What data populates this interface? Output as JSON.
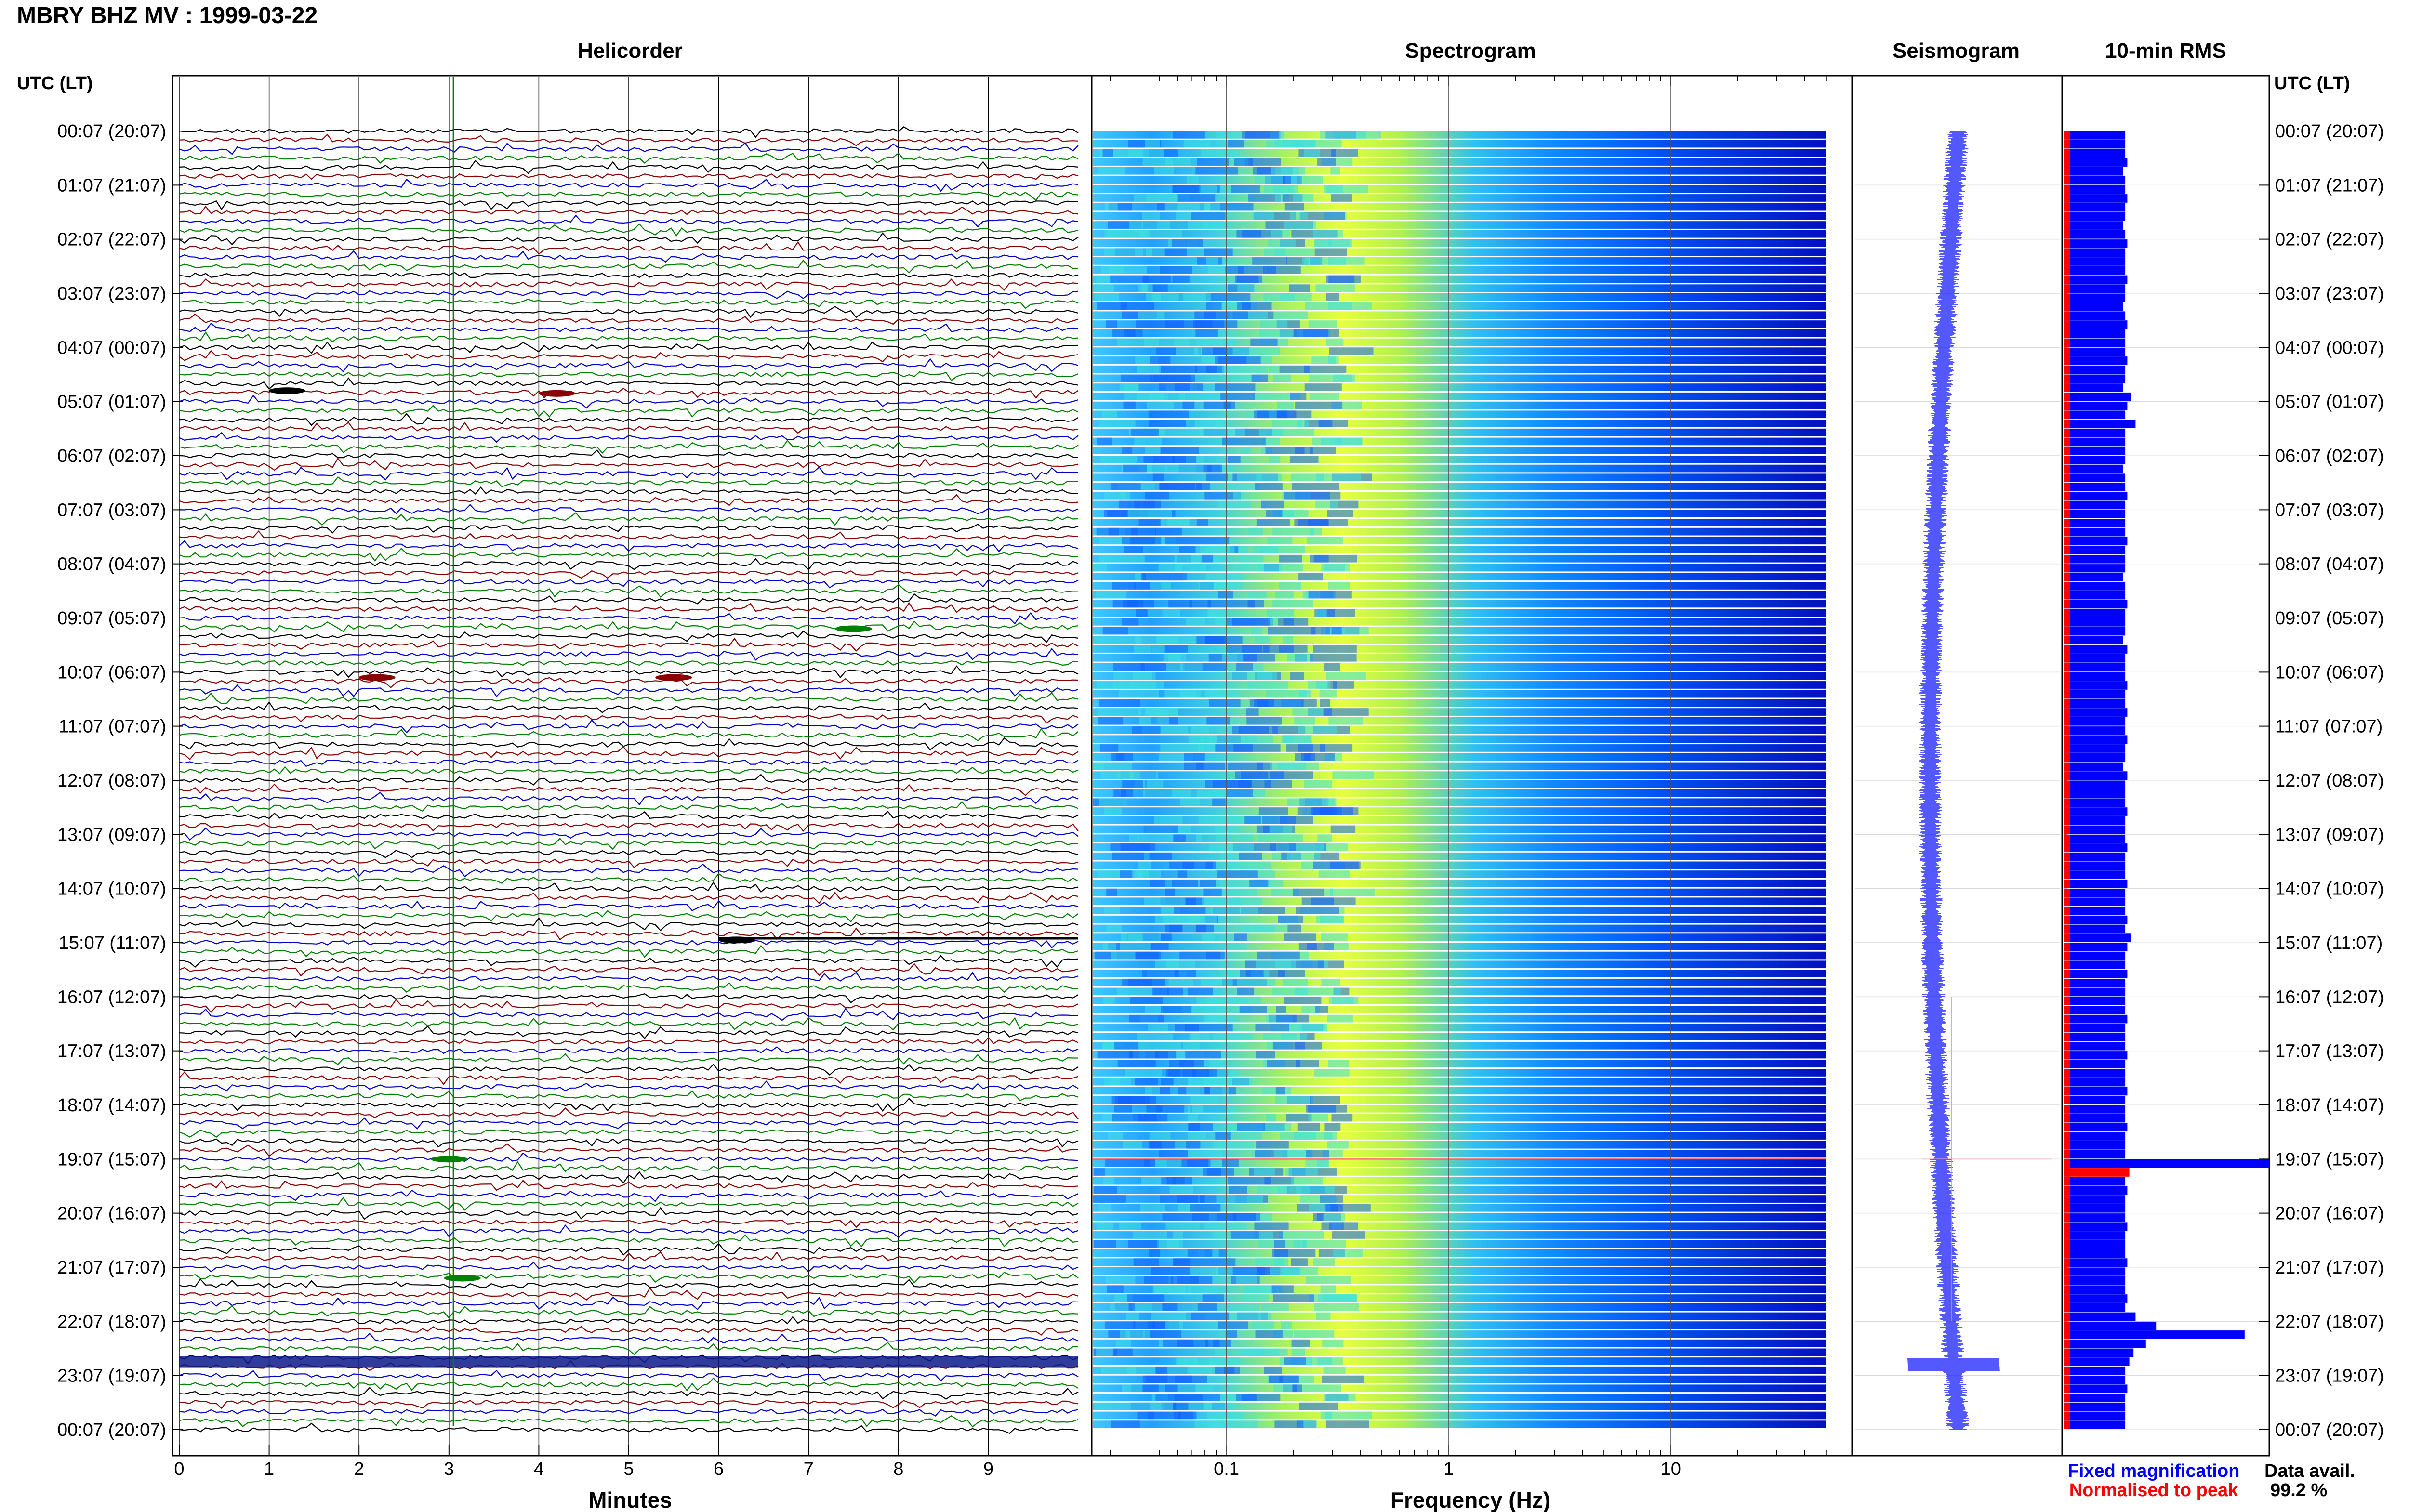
{
  "header": {
    "title": "MBRY BHZ MV : 1999-03-22"
  },
  "panels": {
    "helicorder": "Helicorder",
    "spectrogram": "Spectrogram",
    "seismogram": "Seismogram",
    "rms": "10-min RMS"
  },
  "axes": {
    "left_label": "UTC (LT)",
    "right_label": "UTC (LT)",
    "helicorder_xlabel": "Minutes",
    "spectrogram_xlabel": "Frequency (Hz)"
  },
  "legend": {
    "fixed": "Fixed magnification",
    "normalised": "Normalised to peak",
    "fixed_color": "#0000ff",
    "normalised_color": "#ff0000"
  },
  "data_avail": {
    "label": "Data avail.",
    "value": "99.2 %"
  },
  "colors": {
    "trace_colors": [
      "#000000",
      "#8b0000",
      "#0000cd",
      "#008000"
    ],
    "rms_bar": "#0000ff",
    "rms_peak": "#ff0000",
    "spectro_background": "#0000ff"
  },
  "chart_data": [
    {
      "type": "line",
      "name": "helicorder",
      "title": "Helicorder",
      "xlabel": "Minutes",
      "xlim": [
        0,
        10
      ],
      "x_ticks": [
        "0",
        "1",
        "2",
        "3",
        "4",
        "5",
        "6",
        "7",
        "8",
        "9"
      ],
      "y_tick_labels": [
        "00:07 (20:07)",
        "01:07 (21:07)",
        "02:07 (22:07)",
        "03:07 (23:07)",
        "04:07 (00:07)",
        "05:07 (01:07)",
        "06:07 (02:07)",
        "07:07 (03:07)",
        "08:07 (04:07)",
        "09:07 (05:07)",
        "10:07 (06:07)",
        "11:07 (07:07)",
        "12:07 (08:07)",
        "13:07 (09:07)",
        "14:07 (10:07)",
        "15:07 (11:07)",
        "16:07 (12:07)",
        "17:07 (13:07)",
        "18:07 (14:07)",
        "19:07 (15:07)",
        "20:07 (16:07)",
        "21:07 (17:07)",
        "22:07 (18:07)",
        "23:07 (19:07)",
        "00:07 (20:07)"
      ],
      "traces_per_hour": 6,
      "line_count": 145
    },
    {
      "type": "heatmap",
      "name": "spectrogram",
      "title": "Spectrogram",
      "xlabel": "Frequency (Hz)",
      "x_scale": "log",
      "xlim": [
        0.025,
        50
      ],
      "x_tick_labels": [
        "0.1",
        "1",
        "10"
      ],
      "rows": 144
    },
    {
      "type": "line",
      "name": "seismogram",
      "title": "Seismogram",
      "note_high_amplitude_rows": [
        19,
        22.8
      ]
    },
    {
      "type": "bar",
      "name": "rms",
      "title": "10-min RMS",
      "rows": 144,
      "values": [
        0.3,
        0.3,
        0.3,
        0.31,
        0.29,
        0.3,
        0.3,
        0.31,
        0.3,
        0.3,
        0.29,
        0.3,
        0.31,
        0.3,
        0.3,
        0.3,
        0.31,
        0.3,
        0.3,
        0.29,
        0.3,
        0.31,
        0.3,
        0.3,
        0.3,
        0.31,
        0.3,
        0.3,
        0.29,
        0.33,
        0.31,
        0.3,
        0.35,
        0.3,
        0.3,
        0.3,
        0.3,
        0.29,
        0.3,
        0.3,
        0.31,
        0.3,
        0.3,
        0.3,
        0.3,
        0.31,
        0.3,
        0.3,
        0.3,
        0.29,
        0.3,
        0.3,
        0.31,
        0.3,
        0.3,
        0.3,
        0.29,
        0.31,
        0.3,
        0.3,
        0.3,
        0.31,
        0.3,
        0.3,
        0.31,
        0.3,
        0.3,
        0.31,
        0.3,
        0.3,
        0.29,
        0.31,
        0.3,
        0.3,
        0.3,
        0.31,
        0.3,
        0.3,
        0.3,
        0.31,
        0.3,
        0.3,
        0.3,
        0.31,
        0.3,
        0.3,
        0.3,
        0.31,
        0.3,
        0.33,
        0.31,
        0.3,
        0.3,
        0.31,
        0.3,
        0.3,
        0.3,
        0.3,
        0.31,
        0.3,
        0.3,
        0.3,
        0.31,
        0.3,
        0.3,
        0.3,
        0.31,
        0.3,
        0.3,
        0.3,
        0.31,
        0.3,
        0.3,
        0.3,
        1.0,
        0.32,
        0.3,
        0.31,
        0.3,
        0.3,
        0.3,
        0.31,
        0.3,
        0.3,
        0.3,
        0.31,
        0.3,
        0.3,
        0.3,
        0.31,
        0.3,
        0.35,
        0.45,
        0.88,
        0.4,
        0.34,
        0.32,
        0.3,
        0.3,
        0.31,
        0.3,
        0.3,
        0.3,
        0.3
      ],
      "peak_rows": [
        115,
        134
      ]
    }
  ]
}
